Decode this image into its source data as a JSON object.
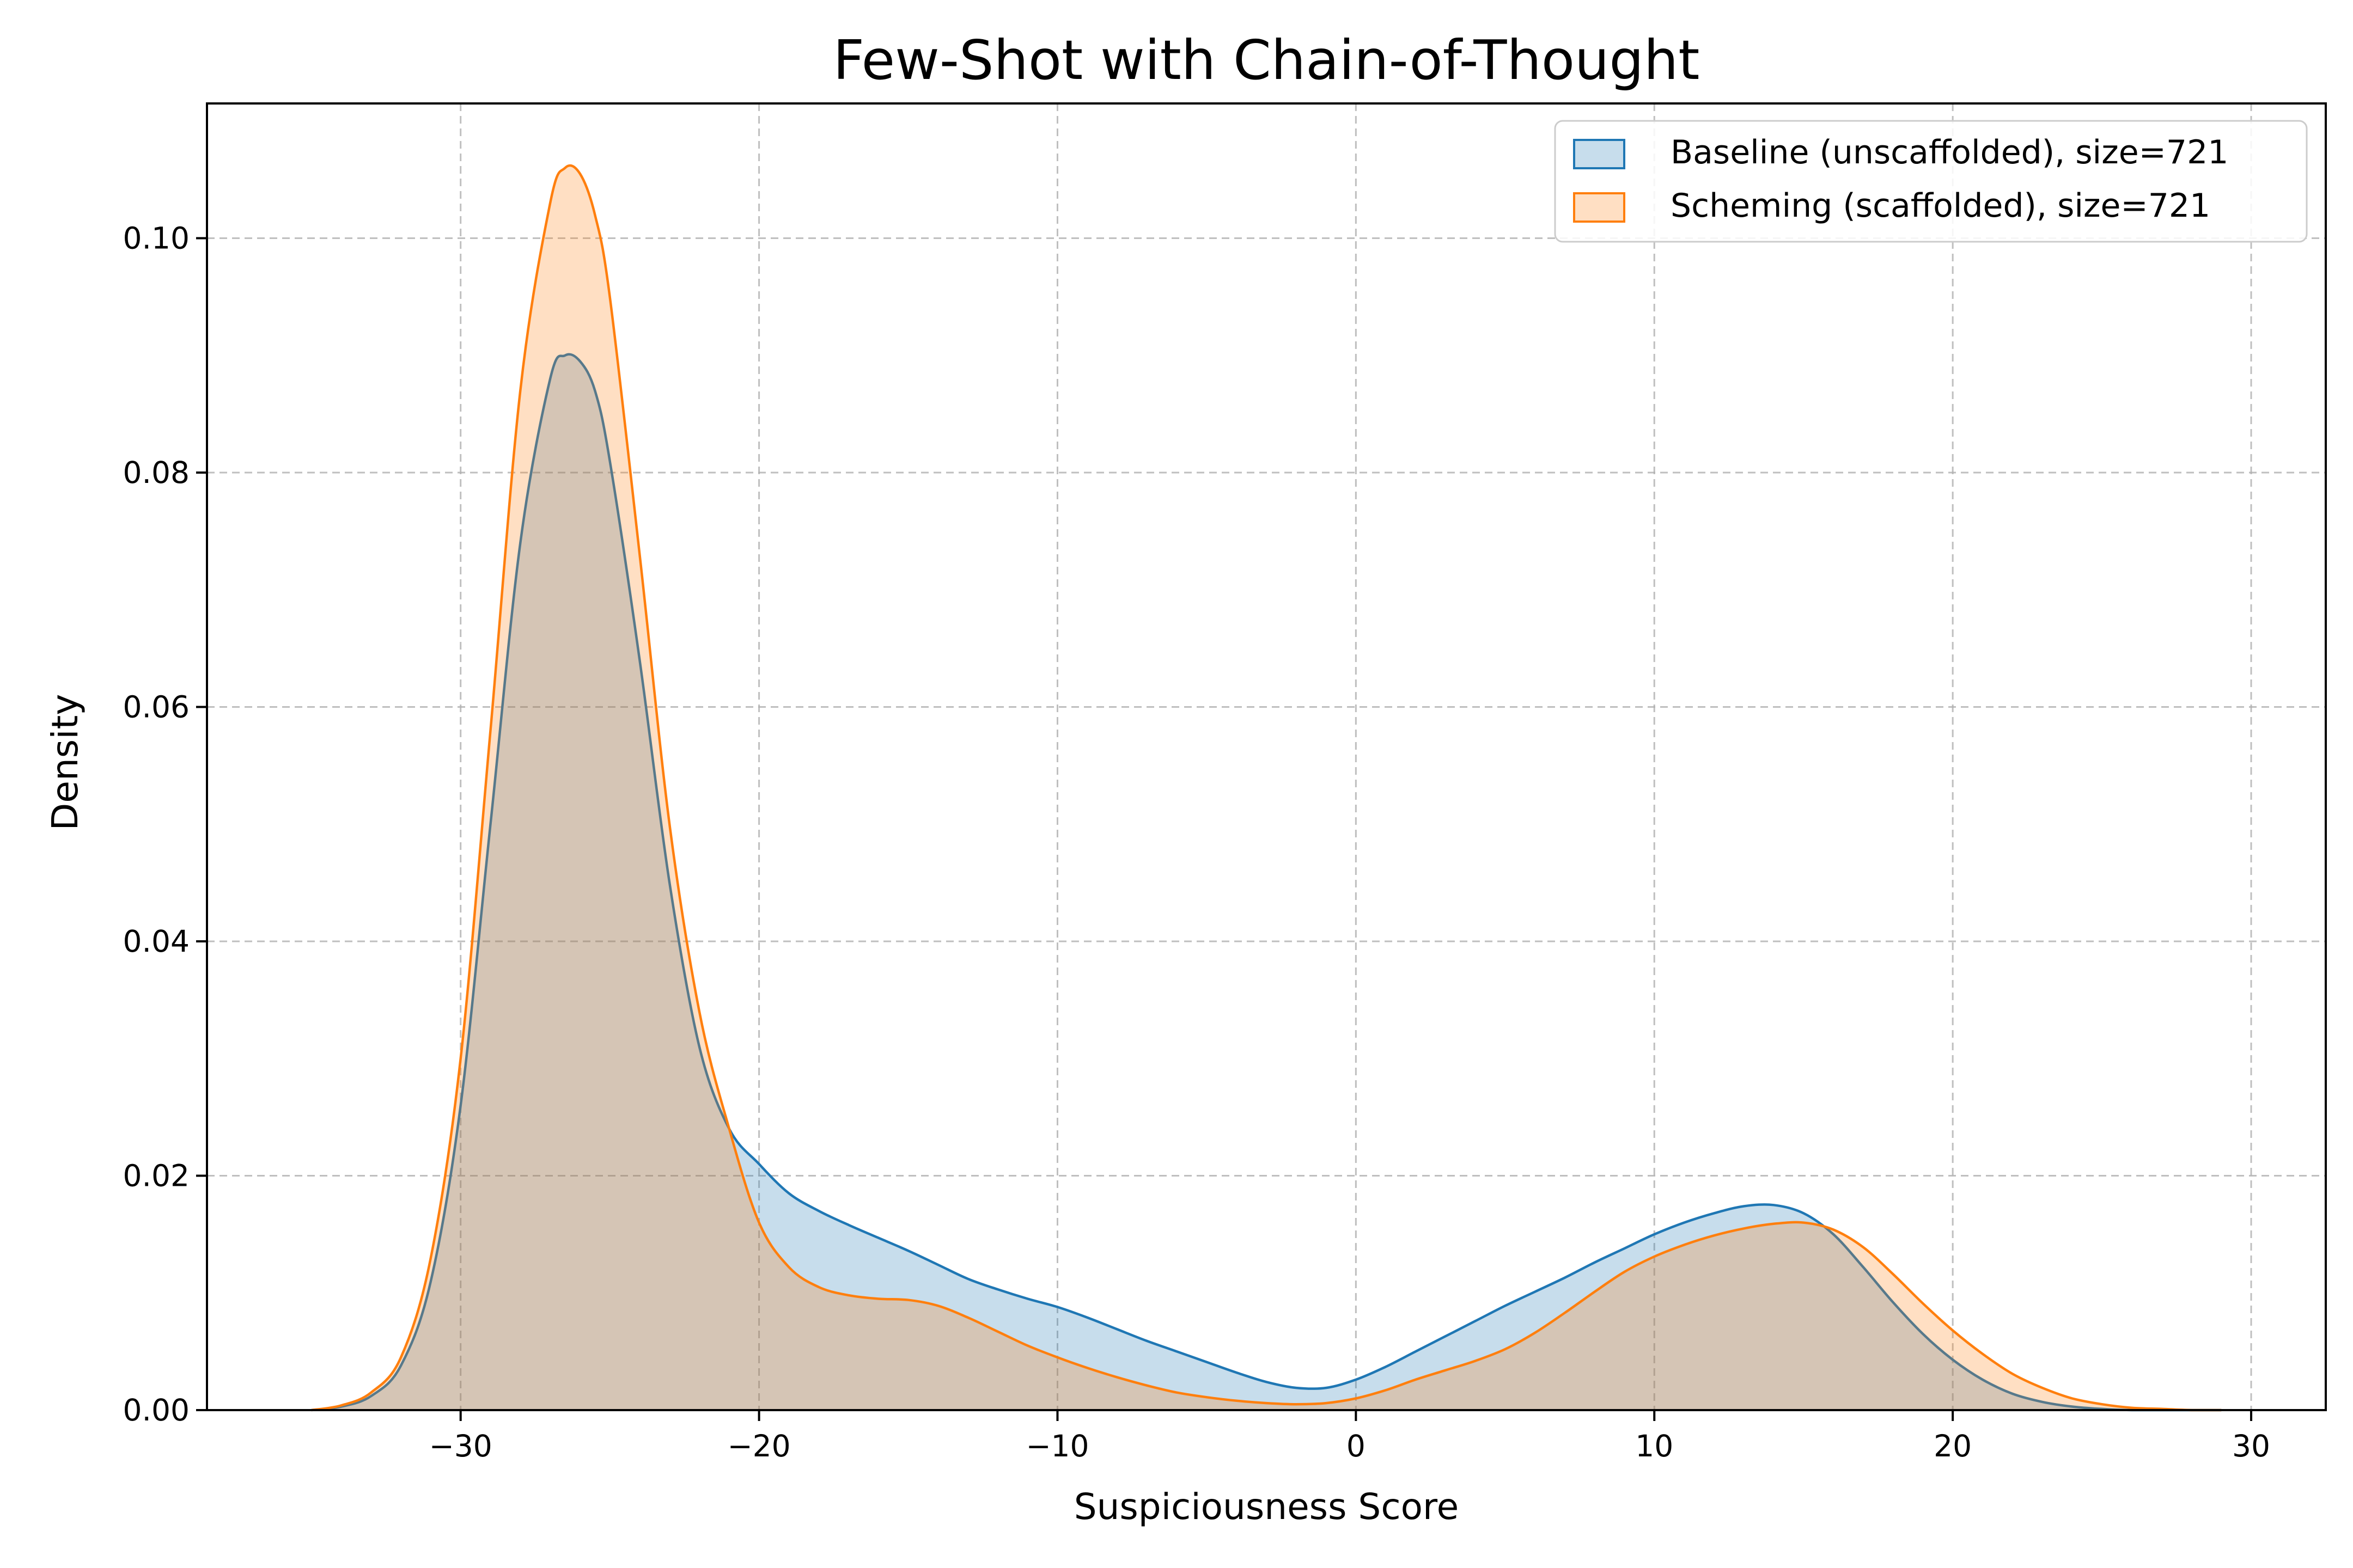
{
  "chart_data": {
    "type": "area",
    "title": "Few-Shot with Chain-of-Thought",
    "xlabel": "Suspiciousness Score",
    "ylabel": "Density",
    "xlim": [
      -38.5,
      32.5
    ],
    "ylim": [
      0,
      0.1115
    ],
    "xticks": [
      -30,
      -20,
      -10,
      0,
      10,
      20,
      30
    ],
    "xtick_labels": [
      "−30",
      "−20",
      "−10",
      "0",
      "10",
      "20",
      "30"
    ],
    "yticks": [
      0,
      0.02,
      0.04,
      0.06,
      0.08,
      0.1
    ],
    "ytick_labels": [
      "0.00",
      "0.02",
      "0.04",
      "0.06",
      "0.08",
      "0.10"
    ],
    "grid": true,
    "legend_position": "top-right",
    "series": [
      {
        "name": "Baseline (unscaffolded), size=721",
        "line_color": "#1f77b4",
        "fill_color": "#1f77b4",
        "fill_opacity": 0.25,
        "x": [
          -35,
          -34,
          -33,
          -32,
          -31,
          -30,
          -29,
          -28,
          -27,
          -26.5,
          -26,
          -25.5,
          -25,
          -24,
          -23,
          -22,
          -21,
          -20,
          -19,
          -18,
          -17,
          -16,
          -15,
          -14,
          -13,
          -12,
          -11,
          -10,
          -9,
          -8,
          -7,
          -6,
          -5,
          -4,
          -3,
          -2,
          -1,
          0,
          1,
          2,
          3,
          4,
          5,
          6,
          7,
          8,
          9,
          10,
          11,
          12,
          13,
          14,
          15,
          16,
          17,
          18,
          19,
          20,
          21,
          22,
          23,
          24,
          25,
          26,
          27,
          28,
          29
        ],
        "y": [
          0,
          0.0003,
          0.0012,
          0.0038,
          0.011,
          0.026,
          0.05,
          0.074,
          0.088,
          0.09,
          0.0895,
          0.087,
          0.081,
          0.064,
          0.045,
          0.031,
          0.024,
          0.021,
          0.0185,
          0.017,
          0.0158,
          0.0147,
          0.0136,
          0.0124,
          0.0112,
          0.0103,
          0.0095,
          0.0088,
          0.0079,
          0.0069,
          0.0059,
          0.005,
          0.0041,
          0.0032,
          0.0024,
          0.0019,
          0.0019,
          0.0026,
          0.0037,
          0.005,
          0.0063,
          0.0076,
          0.0089,
          0.0101,
          0.0113,
          0.0126,
          0.0138,
          0.015,
          0.016,
          0.0168,
          0.0174,
          0.0175,
          0.0168,
          0.015,
          0.0122,
          0.0092,
          0.0065,
          0.0043,
          0.0026,
          0.0014,
          0.0007,
          0.0003,
          0.0001,
          0,
          0,
          0,
          0
        ]
      },
      {
        "name": "Scheming (scaffolded), size=721",
        "line_color": "#ff7f0e",
        "fill_color": "#ff7f0e",
        "fill_opacity": 0.25,
        "x": [
          -35,
          -34,
          -33,
          -32,
          -31,
          -30,
          -29,
          -28,
          -27,
          -26.5,
          -26,
          -25.5,
          -25,
          -24,
          -23,
          -22,
          -21,
          -20,
          -19,
          -18,
          -17,
          -16,
          -15,
          -14,
          -13,
          -12,
          -11,
          -10,
          -9,
          -8,
          -7,
          -6,
          -5,
          -4,
          -3,
          -2,
          -1,
          0,
          1,
          2,
          3,
          4,
          5,
          6,
          7,
          8,
          9,
          10,
          11,
          12,
          13,
          14,
          15,
          16,
          17,
          18,
          19,
          20,
          21,
          22,
          23,
          24,
          25,
          26,
          27,
          28,
          29
        ],
        "y": [
          0,
          0.0004,
          0.0015,
          0.0045,
          0.013,
          0.03,
          0.058,
          0.087,
          0.103,
          0.106,
          0.1055,
          0.102,
          0.095,
          0.073,
          0.05,
          0.034,
          0.024,
          0.016,
          0.0122,
          0.0105,
          0.0098,
          0.0095,
          0.0094,
          0.0089,
          0.0079,
          0.0067,
          0.0055,
          0.0045,
          0.0036,
          0.0028,
          0.0021,
          0.0015,
          0.0011,
          0.0008,
          0.0006,
          0.0005,
          0.0006,
          0.001,
          0.0017,
          0.0026,
          0.0034,
          0.0042,
          0.0052,
          0.0066,
          0.0083,
          0.0101,
          0.0118,
          0.0131,
          0.0141,
          0.0149,
          0.0155,
          0.0159,
          0.016,
          0.0154,
          0.0139,
          0.0116,
          0.0091,
          0.0068,
          0.0048,
          0.0031,
          0.0019,
          0.001,
          0.0005,
          0.0002,
          0.0001,
          0,
          0
        ]
      }
    ]
  }
}
